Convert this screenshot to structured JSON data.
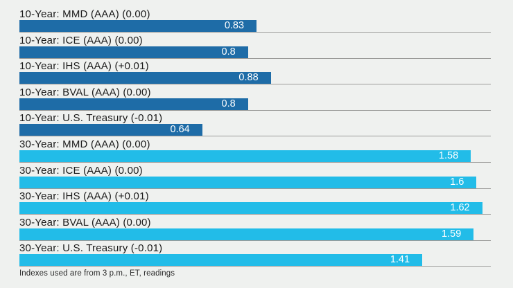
{
  "chart_data": {
    "type": "bar",
    "orientation": "horizontal",
    "title": "",
    "xlabel": "",
    "ylabel": "",
    "xlim": [
      0,
      1.65
    ],
    "legend": "none",
    "grid": "per-row baseline only",
    "value_label_position": "inside-bar-right",
    "categories": [
      "10-Year: MMD (AAA) (0.00)",
      "10-Year: ICE (AAA) (0.00)",
      "10-Year: IHS (AAA) (+0.01)",
      "10-Year: BVAL (AAA) (0.00)",
      "10-Year: U.S. Treasury (-0.01)",
      "30-Year: MMD (AAA) (0.00)",
      "30-Year: ICE (AAA) (0.00)",
      "30-Year: IHS (AAA) (+0.01)",
      "30-Year: BVAL (AAA) (0.00)",
      "30-Year: U.S. Treasury (-0.01)"
    ],
    "values": [
      0.83,
      0.8,
      0.88,
      0.8,
      0.64,
      1.58,
      1.6,
      1.62,
      1.59,
      1.41
    ],
    "rows": [
      {
        "label": "10-Year: MMD (AAA) (0.00)",
        "value": 0.83,
        "display_value": "0.83",
        "group": "10-year"
      },
      {
        "label": "10-Year: ICE (AAA) (0.00)",
        "value": 0.8,
        "display_value": "0.8",
        "group": "10-year"
      },
      {
        "label": "10-Year: IHS (AAA) (+0.01)",
        "value": 0.88,
        "display_value": "0.88",
        "group": "10-year"
      },
      {
        "label": "10-Year: BVAL (AAA) (0.00)",
        "value": 0.8,
        "display_value": "0.8",
        "group": "10-year"
      },
      {
        "label": "10-Year: U.S. Treasury (-0.01)",
        "value": 0.64,
        "display_value": "0.64",
        "group": "10-year"
      },
      {
        "label": "30-Year: MMD (AAA) (0.00)",
        "value": 1.58,
        "display_value": "1.58",
        "group": "30-year"
      },
      {
        "label": "30-Year: ICE (AAA) (0.00)",
        "value": 1.6,
        "display_value": "1.6",
        "group": "30-year"
      },
      {
        "label": "30-Year: IHS (AAA) (+0.01)",
        "value": 1.62,
        "display_value": "1.62",
        "group": "30-year"
      },
      {
        "label": "30-Year: BVAL (AAA) (0.00)",
        "value": 1.59,
        "display_value": "1.59",
        "group": "30-year"
      },
      {
        "label": "30-Year: U.S. Treasury (-0.01)",
        "value": 1.41,
        "display_value": "1.41",
        "group": "30-year"
      }
    ],
    "groups": {
      "10-year": {
        "color": "#1E6CA7"
      },
      "30-year": {
        "color": "#22BCE8"
      }
    }
  },
  "caption": "Indexes used are from 3 p.m., ET, readings",
  "colors": {
    "background": "#EFF1EF",
    "baseline": "#9B9B99",
    "label_text": "#1B1B1B",
    "value_text": "#FFFFFF"
  }
}
